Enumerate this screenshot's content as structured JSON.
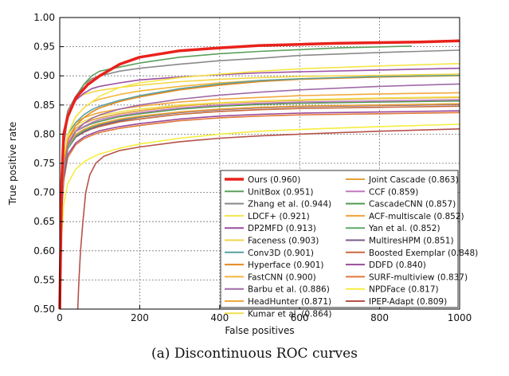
{
  "chart_data": {
    "type": "line",
    "title": "",
    "xlabel": "False positives",
    "ylabel": "True positive rate",
    "xlim": [
      0,
      1000
    ],
    "ylim": [
      0.5,
      1.0
    ],
    "xticks": [
      "0",
      "200",
      "400",
      "600",
      "800",
      "1000"
    ],
    "yticks": [
      "0.50",
      "0.55",
      "0.60",
      "0.65",
      "0.70",
      "0.75",
      "0.80",
      "0.85",
      "0.90",
      "0.95",
      "1.00"
    ],
    "grid": true,
    "legend_position": "bottom-right",
    "series": [
      {
        "name": "Ours (0.960)",
        "color": "#e8221b",
        "x": [
          0,
          5,
          10,
          20,
          40,
          70,
          100,
          150,
          200,
          300,
          400,
          500,
          600,
          700,
          800,
          900,
          1000
        ],
        "y": [
          0.5,
          0.72,
          0.8,
          0.83,
          0.862,
          0.885,
          0.9,
          0.92,
          0.932,
          0.943,
          0.948,
          0.952,
          0.954,
          0.956,
          0.957,
          0.958,
          0.96
        ]
      },
      {
        "name": "UnitBox (0.951)",
        "color": "#5aa05a",
        "x": [
          0,
          5,
          10,
          20,
          40,
          60,
          80,
          100,
          150,
          200,
          300,
          400,
          500,
          600,
          700,
          880
        ],
        "y": [
          0.5,
          0.72,
          0.79,
          0.83,
          0.86,
          0.885,
          0.9,
          0.908,
          0.915,
          0.922,
          0.932,
          0.938,
          0.942,
          0.945,
          0.948,
          0.951
        ]
      },
      {
        "name": "Zhang et al. (0.944)",
        "color": "#8a8a8a",
        "x": [
          0,
          5,
          10,
          20,
          40,
          60,
          80,
          100,
          150,
          200,
          300,
          400,
          500,
          600,
          800,
          1000
        ],
        "y": [
          0.5,
          0.73,
          0.8,
          0.84,
          0.865,
          0.885,
          0.895,
          0.9,
          0.908,
          0.913,
          0.92,
          0.926,
          0.93,
          0.935,
          0.94,
          0.944
        ]
      },
      {
        "name": "LDCF+ (0.921)",
        "color": "#f5e64a",
        "x": [
          0,
          5,
          10,
          20,
          40,
          60,
          80,
          100,
          150,
          200,
          300,
          400,
          500,
          600,
          800,
          1000
        ],
        "y": [
          0.5,
          0.7,
          0.76,
          0.8,
          0.83,
          0.845,
          0.855,
          0.865,
          0.88,
          0.888,
          0.897,
          0.903,
          0.908,
          0.912,
          0.917,
          0.921
        ]
      },
      {
        "name": "DP2MFD (0.913)",
        "color": "#9b4fa0",
        "x": [
          0,
          5,
          10,
          20,
          40,
          60,
          80,
          100,
          150,
          200,
          300,
          400,
          500,
          600,
          800,
          1000
        ],
        "y": [
          0.5,
          0.7,
          0.78,
          0.83,
          0.858,
          0.87,
          0.878,
          0.882,
          0.888,
          0.893,
          0.898,
          0.902,
          0.905,
          0.907,
          0.91,
          0.913
        ]
      },
      {
        "name": "Faceness (0.903)",
        "color": "#f2d648",
        "x": [
          0,
          5,
          10,
          20,
          40,
          60,
          80,
          100,
          150,
          200,
          300,
          400,
          500,
          600,
          800,
          1000
        ],
        "y": [
          0.5,
          0.72,
          0.8,
          0.84,
          0.86,
          0.868,
          0.872,
          0.875,
          0.88,
          0.884,
          0.89,
          0.894,
          0.897,
          0.899,
          0.901,
          0.903
        ]
      },
      {
        "name": "Conv3D (0.901)",
        "color": "#5aa0a0",
        "x": [
          0,
          5,
          10,
          20,
          40,
          60,
          80,
          100,
          150,
          200,
          300,
          400,
          500,
          600,
          800,
          1000
        ],
        "y": [
          0.5,
          0.7,
          0.76,
          0.8,
          0.82,
          0.833,
          0.842,
          0.848,
          0.858,
          0.866,
          0.878,
          0.886,
          0.892,
          0.895,
          0.899,
          0.901
        ]
      },
      {
        "name": "Hyperface (0.901)",
        "color": "#e58a1f",
        "x": [
          0,
          5,
          10,
          20,
          40,
          60,
          80,
          100,
          150,
          200,
          300,
          400,
          500,
          600,
          800,
          1000
        ],
        "y": [
          0.5,
          0.69,
          0.75,
          0.79,
          0.815,
          0.828,
          0.838,
          0.845,
          0.856,
          0.864,
          0.876,
          0.884,
          0.89,
          0.894,
          0.898,
          0.901
        ]
      },
      {
        "name": "FastCNN (0.900)",
        "color": "#f3b63a",
        "x": [
          0,
          5,
          10,
          20,
          40,
          60,
          80,
          100,
          150,
          200,
          300,
          400,
          500,
          600,
          800,
          1000
        ],
        "y": [
          0.5,
          0.7,
          0.76,
          0.8,
          0.83,
          0.845,
          0.855,
          0.86,
          0.868,
          0.874,
          0.882,
          0.888,
          0.892,
          0.895,
          0.898,
          0.9
        ]
      },
      {
        "name": "Barbu et al. (0.886)",
        "color": "#a06aa8",
        "x": [
          0,
          5,
          10,
          20,
          40,
          60,
          80,
          100,
          150,
          200,
          300,
          400,
          500,
          600,
          800,
          1000
        ],
        "y": [
          0.5,
          0.69,
          0.74,
          0.78,
          0.805,
          0.818,
          0.827,
          0.833,
          0.843,
          0.85,
          0.86,
          0.867,
          0.872,
          0.876,
          0.882,
          0.886
        ]
      },
      {
        "name": "HeadHunter (0.871)",
        "color": "#f2a83c",
        "x": [
          0,
          5,
          10,
          20,
          40,
          60,
          80,
          100,
          150,
          200,
          300,
          400,
          500,
          600,
          800,
          1000
        ],
        "y": [
          0.5,
          0.7,
          0.76,
          0.8,
          0.82,
          0.828,
          0.833,
          0.837,
          0.843,
          0.848,
          0.855,
          0.86,
          0.863,
          0.866,
          0.869,
          0.871
        ]
      },
      {
        "name": "Kumar et al. (0.864)",
        "color": "#f0e050",
        "x": [
          0,
          5,
          10,
          20,
          40,
          60,
          80,
          100,
          150,
          200,
          300,
          400,
          500,
          600,
          800,
          1000
        ],
        "y": [
          0.5,
          0.7,
          0.755,
          0.795,
          0.815,
          0.822,
          0.828,
          0.832,
          0.838,
          0.843,
          0.85,
          0.854,
          0.857,
          0.859,
          0.862,
          0.864
        ]
      },
      {
        "name": "Joint Cascade (0.863)",
        "color": "#e3a23a",
        "x": [
          0,
          5,
          10,
          20,
          40,
          60,
          80,
          100,
          150,
          200,
          300,
          400,
          500,
          600,
          800,
          1000
        ],
        "y": [
          0.5,
          0.69,
          0.75,
          0.79,
          0.81,
          0.818,
          0.824,
          0.828,
          0.835,
          0.84,
          0.848,
          0.853,
          0.856,
          0.858,
          0.861,
          0.863
        ]
      },
      {
        "name": "CCF (0.859)",
        "color": "#c07ac0",
        "x": [
          0,
          5,
          10,
          20,
          40,
          60,
          80,
          100,
          150,
          200,
          300,
          400,
          500,
          600,
          800,
          1000
        ],
        "y": [
          0.5,
          0.69,
          0.745,
          0.785,
          0.805,
          0.813,
          0.82,
          0.825,
          0.832,
          0.837,
          0.845,
          0.85,
          0.853,
          0.855,
          0.857,
          0.859
        ]
      },
      {
        "name": "CascadeCNN (0.857)",
        "color": "#4f9a4f",
        "x": [
          0,
          5,
          10,
          20,
          40,
          60,
          80,
          100,
          150,
          200,
          300,
          400,
          500,
          600,
          800,
          1000
        ],
        "y": [
          0.5,
          0.69,
          0.745,
          0.785,
          0.805,
          0.812,
          0.818,
          0.822,
          0.83,
          0.835,
          0.843,
          0.848,
          0.851,
          0.853,
          0.855,
          0.857
        ]
      },
      {
        "name": "ACF-multiscale (0.852)",
        "color": "#f3a03a",
        "x": [
          0,
          5,
          10,
          20,
          40,
          60,
          80,
          100,
          150,
          200,
          300,
          400,
          500,
          600,
          800,
          1000
        ],
        "y": [
          0.5,
          0.68,
          0.74,
          0.78,
          0.8,
          0.808,
          0.814,
          0.818,
          0.826,
          0.831,
          0.838,
          0.843,
          0.846,
          0.848,
          0.85,
          0.852
        ]
      },
      {
        "name": "Yan et al. (0.852)",
        "color": "#5fa86a",
        "x": [
          0,
          5,
          10,
          20,
          40,
          60,
          80,
          100,
          150,
          200,
          300,
          400,
          500,
          600,
          800,
          1000
        ],
        "y": [
          0.5,
          0.68,
          0.735,
          0.775,
          0.797,
          0.806,
          0.812,
          0.817,
          0.825,
          0.83,
          0.838,
          0.843,
          0.846,
          0.848,
          0.85,
          0.852
        ]
      },
      {
        "name": "MultiresHPM (0.851)",
        "color": "#7a5a8a",
        "x": [
          0,
          5,
          10,
          20,
          40,
          60,
          80,
          100,
          150,
          200,
          300,
          400,
          500,
          600,
          800,
          1000
        ],
        "y": [
          0.5,
          0.68,
          0.735,
          0.775,
          0.795,
          0.804,
          0.81,
          0.815,
          0.823,
          0.829,
          0.837,
          0.842,
          0.845,
          0.847,
          0.849,
          0.851
        ]
      },
      {
        "name": "Boosted Exemplar (0.848)",
        "color": "#c96a3a",
        "x": [
          0,
          5,
          10,
          20,
          40,
          60,
          80,
          100,
          150,
          200,
          300,
          400,
          500,
          600,
          800,
          1000
        ],
        "y": [
          0.5,
          0.68,
          0.735,
          0.775,
          0.795,
          0.803,
          0.809,
          0.813,
          0.821,
          0.826,
          0.834,
          0.839,
          0.842,
          0.844,
          0.846,
          0.848
        ]
      },
      {
        "name": "DDFD (0.840)",
        "color": "#9a4a9a",
        "x": [
          0,
          5,
          10,
          20,
          40,
          60,
          80,
          100,
          150,
          200,
          300,
          400,
          500,
          600,
          800,
          1000
        ],
        "y": [
          0.5,
          0.67,
          0.725,
          0.765,
          0.785,
          0.795,
          0.801,
          0.806,
          0.813,
          0.818,
          0.826,
          0.831,
          0.834,
          0.836,
          0.838,
          0.84
        ]
      },
      {
        "name": "SURF-multiview (0.837)",
        "color": "#e0783a",
        "x": [
          0,
          5,
          10,
          20,
          40,
          60,
          80,
          100,
          150,
          200,
          300,
          400,
          500,
          600,
          800,
          1000
        ],
        "y": [
          0.5,
          0.67,
          0.72,
          0.76,
          0.782,
          0.792,
          0.798,
          0.803,
          0.81,
          0.815,
          0.823,
          0.828,
          0.831,
          0.833,
          0.835,
          0.837
        ]
      },
      {
        "name": "NPDFace (0.817)",
        "color": "#f5ee40",
        "x": [
          0,
          5,
          10,
          20,
          40,
          60,
          80,
          100,
          150,
          200,
          300,
          400,
          500,
          600,
          800,
          1000
        ],
        "y": [
          0.5,
          0.63,
          0.68,
          0.715,
          0.74,
          0.752,
          0.76,
          0.766,
          0.776,
          0.783,
          0.793,
          0.8,
          0.805,
          0.808,
          0.813,
          0.817
        ]
      },
      {
        "name": "IPEP-Adapt (0.809)",
        "color": "#b5524a",
        "x": [
          45,
          48,
          52,
          58,
          65,
          75,
          90,
          110,
          150,
          200,
          300,
          400,
          500,
          600,
          800,
          1000
        ],
        "y": [
          0.5,
          0.55,
          0.6,
          0.65,
          0.7,
          0.73,
          0.75,
          0.762,
          0.772,
          0.778,
          0.787,
          0.793,
          0.797,
          0.8,
          0.805,
          0.809
        ]
      }
    ]
  },
  "caption": "(a)  Discontinuous ROC curves"
}
